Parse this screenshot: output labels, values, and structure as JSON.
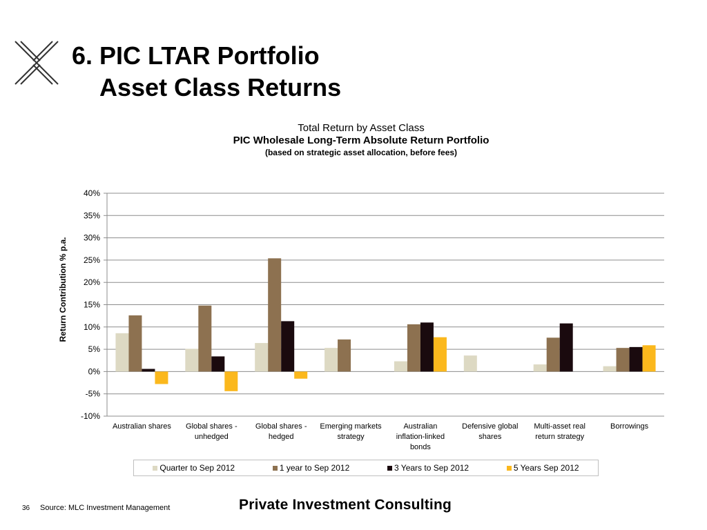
{
  "slide": {
    "title_line1": "6. PIC LTAR Portfolio",
    "title_line2": "Asset Class Returns",
    "logo_icon": "x-cross-logo-icon"
  },
  "footer": {
    "page_number": "36",
    "source": "Source: MLC Investment Management",
    "brand": "Private Investment Consulting"
  },
  "chart_data": {
    "type": "bar",
    "title": "Total Return by Asset Class",
    "subtitle": "PIC Wholesale Long-Term Absolute Return Portfolio",
    "note": "(based on strategic asset allocation, before fees)",
    "xlabel": "",
    "ylabel": "Return Contribution % p.a.",
    "ylim": [
      -10,
      40
    ],
    "yticks": [
      "-10%",
      "-5%",
      "0%",
      "5%",
      "10%",
      "15%",
      "20%",
      "25%",
      "30%",
      "35%",
      "40%"
    ],
    "grid": true,
    "legend_position": "bottom",
    "categories": [
      [
        "Australian shares"
      ],
      [
        "Global shares -",
        "unhedged"
      ],
      [
        "Global shares -",
        "hedged"
      ],
      [
        "Emerging markets",
        "strategy"
      ],
      [
        "Australian",
        "inflation-linked",
        "bonds"
      ],
      [
        "Defensive global",
        "shares"
      ],
      [
        "Multi-asset real",
        "return strategy"
      ],
      [
        "Borrowings"
      ]
    ],
    "series": [
      {
        "name": "Quarter to  Sep 2012",
        "color": "#ddd9c3",
        "values": [
          8.6,
          5.1,
          6.4,
          5.3,
          2.3,
          3.6,
          1.6,
          1.2
        ]
      },
      {
        "name": "1 year to  Sep 2012",
        "color": "#8d7150",
        "values": [
          12.6,
          14.8,
          25.4,
          7.2,
          10.6,
          null,
          7.6,
          5.3
        ]
      },
      {
        "name": "3 Years to  Sep 2012",
        "color": "#1a0a0e",
        "values": [
          0.6,
          3.4,
          11.3,
          null,
          11.0,
          null,
          10.8,
          5.5
        ]
      },
      {
        "name": "5 Years Sep 2012",
        "color": "#fbb81d",
        "values": [
          -2.8,
          -4.4,
          -1.6,
          null,
          7.7,
          null,
          null,
          5.9
        ]
      }
    ]
  }
}
